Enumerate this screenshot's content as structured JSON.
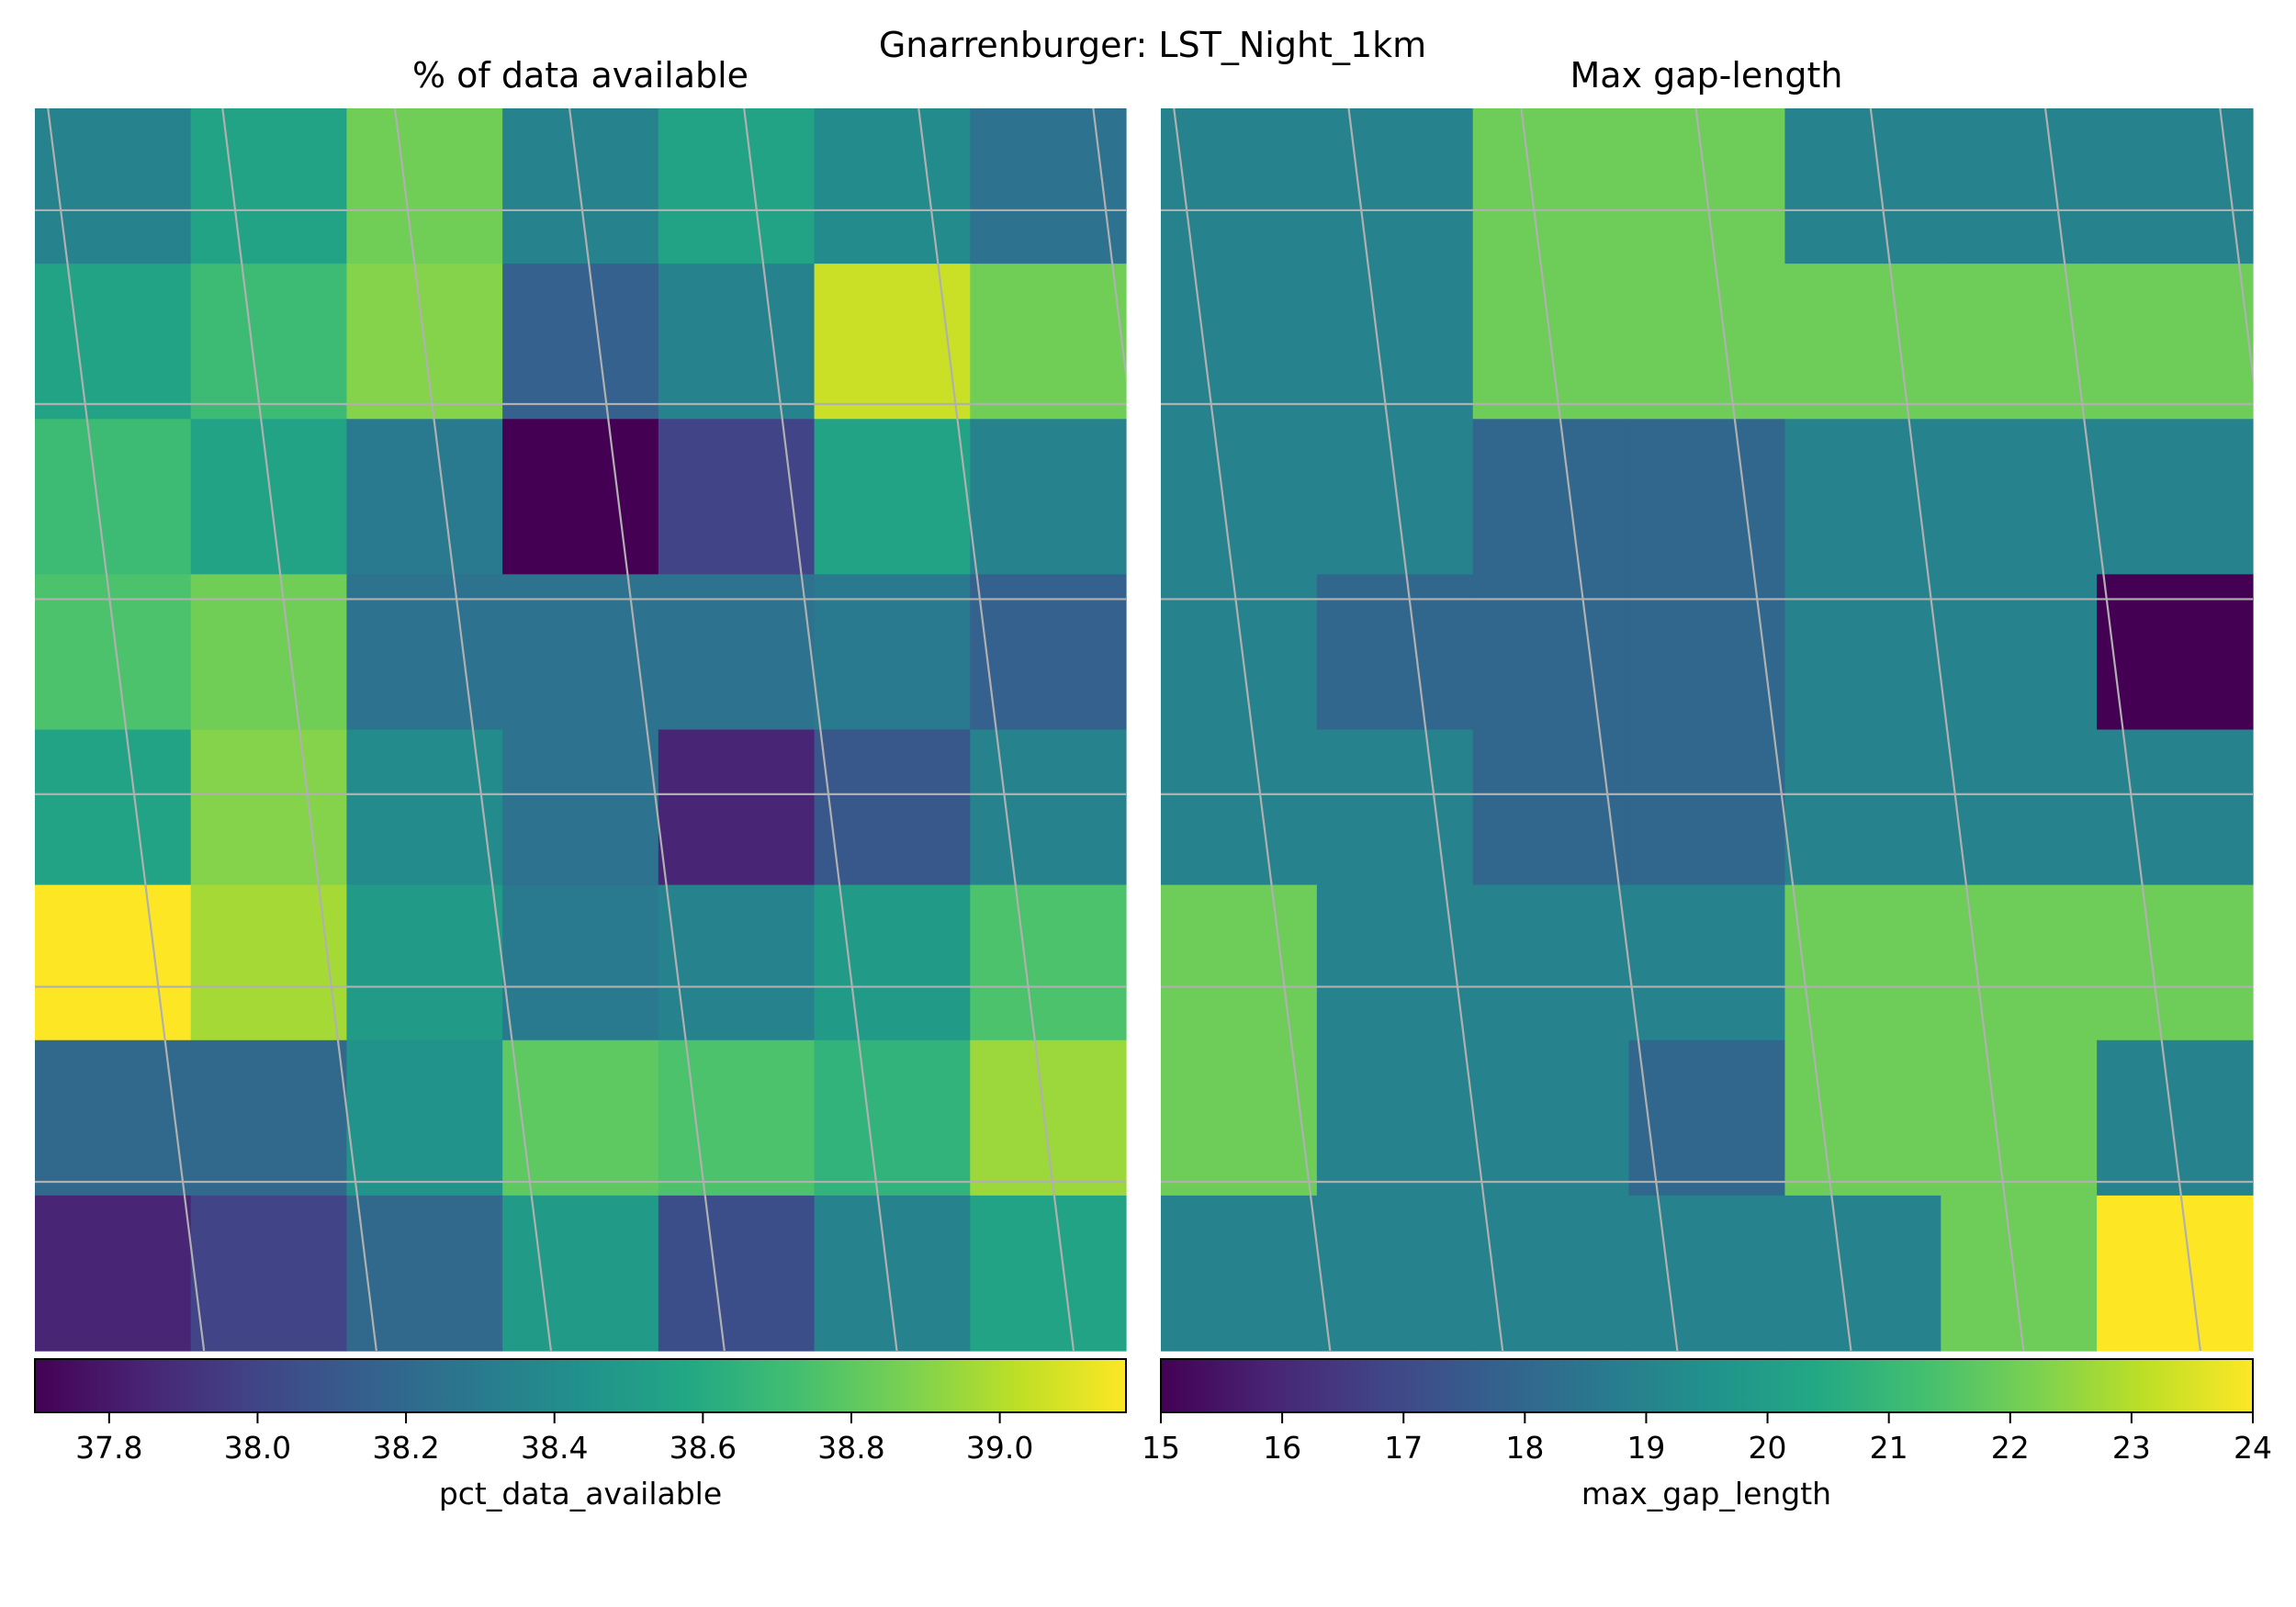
{
  "figure": {
    "suptitle": "Gnarrenburger: LST_Night_1km"
  },
  "chart_data": [
    {
      "type": "heatmap",
      "title": "% of data available",
      "colorbar_label": "pct_data_available",
      "colormap": "viridis",
      "vmin": 37.7,
      "vmax": 39.17,
      "colorbar_ticks": [
        "37.8",
        "38.0",
        "38.2",
        "38.4",
        "38.6",
        "38.8",
        "39.0"
      ],
      "colorbar_tick_values": [
        37.8,
        38.0,
        38.2,
        38.4,
        38.6,
        38.8,
        39.0
      ],
      "grid": true,
      "values": [
        [
          38.35,
          38.55,
          38.85,
          38.35,
          38.55,
          38.4,
          38.25
        ],
        [
          38.55,
          38.7,
          38.9,
          38.15,
          38.35,
          39.05,
          38.85
        ],
        [
          38.7,
          38.55,
          38.3,
          37.7,
          38.0,
          38.55,
          38.35
        ],
        [
          38.75,
          38.85,
          38.25,
          38.25,
          38.25,
          38.3,
          38.15
        ],
        [
          38.55,
          38.9,
          38.4,
          38.25,
          37.85,
          38.1,
          38.35
        ],
        [
          39.17,
          38.97,
          38.5,
          38.3,
          38.35,
          38.5,
          38.75
        ],
        [
          38.2,
          38.2,
          38.45,
          38.8,
          38.75,
          38.65,
          38.95
        ],
        [
          37.85,
          38.0,
          38.2,
          38.5,
          38.05,
          38.35,
          38.55
        ]
      ]
    },
    {
      "type": "heatmap",
      "title": "Max gap-length",
      "colorbar_label": "max_gap_length",
      "colormap": "viridis",
      "vmin": 15,
      "vmax": 24,
      "colorbar_ticks": [
        "15",
        "16",
        "17",
        "18",
        "19",
        "20",
        "21",
        "22",
        "23",
        "24"
      ],
      "colorbar_tick_values": [
        15,
        16,
        17,
        18,
        19,
        20,
        21,
        22,
        23,
        24
      ],
      "grid": true,
      "values": [
        [
          19,
          19,
          22,
          22,
          19,
          19,
          19
        ],
        [
          19,
          19,
          22,
          22,
          22,
          22,
          22
        ],
        [
          19,
          19,
          18,
          18,
          19,
          19,
          19
        ],
        [
          19,
          18,
          18,
          18,
          19,
          19,
          15
        ],
        [
          19,
          19,
          18,
          18,
          19,
          19,
          19
        ],
        [
          22,
          19,
          19,
          19,
          22,
          22,
          22
        ],
        [
          22,
          19,
          19,
          18,
          22,
          22,
          19
        ],
        [
          19,
          19,
          19,
          19,
          19,
          22,
          24
        ]
      ]
    }
  ]
}
